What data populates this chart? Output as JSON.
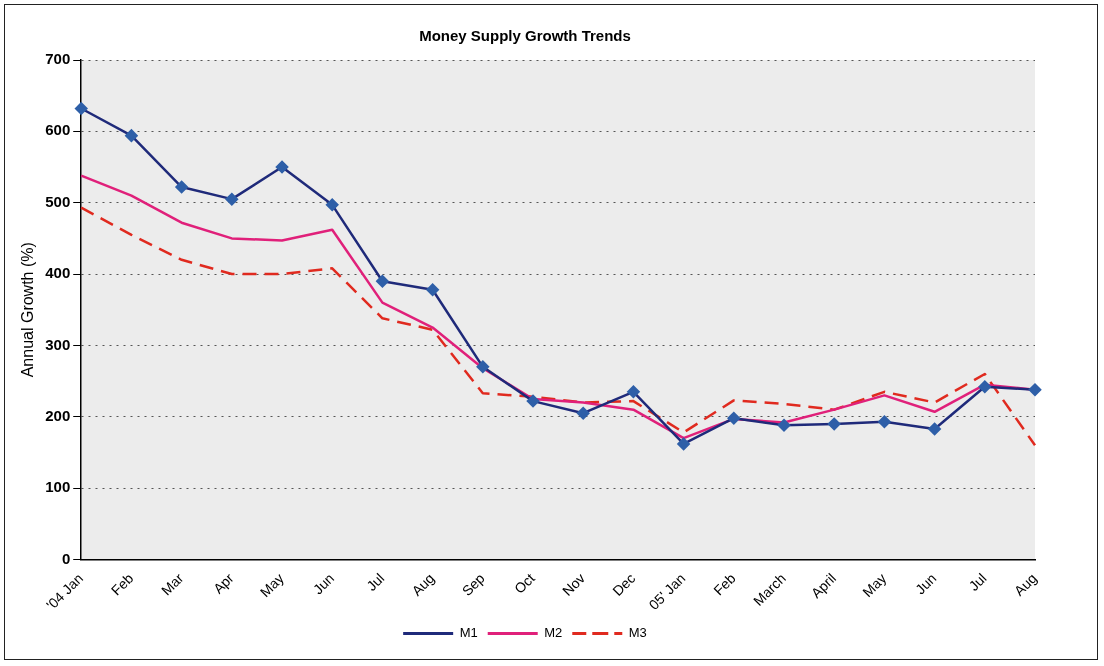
{
  "chart_data": {
    "type": "line",
    "title": "Money Supply Growth Trends",
    "ylabel": "Annual Growth (%)",
    "categories": [
      "'04 Jan",
      "Feb",
      "Mar",
      "Apr",
      "May",
      "Jun",
      "Jul",
      "Aug",
      "Sep",
      "Oct",
      "Nov",
      "Dec",
      "05' Jan",
      "Feb",
      "March",
      "April",
      "May",
      "Jun",
      "Jul",
      "Aug"
    ],
    "series": [
      {
        "name": "M1",
        "color": "#1f2a7a",
        "marker": "diamond",
        "line_style": "solid",
        "values": [
          632,
          594,
          522,
          505,
          550,
          497,
          390,
          378,
          270,
          222,
          205,
          235,
          162,
          198,
          188,
          190,
          193,
          183,
          242,
          238
        ]
      },
      {
        "name": "M2",
        "color": "#e0207a",
        "marker": "none",
        "line_style": "solid",
        "values": [
          538,
          510,
          472,
          450,
          447,
          462,
          360,
          325,
          268,
          225,
          220,
          210,
          170,
          197,
          192,
          210,
          230,
          207,
          245,
          238
        ]
      },
      {
        "name": "M3",
        "color": "#e02a1f",
        "marker": "none",
        "line_style": "dashed",
        "values": [
          493,
          455,
          420,
          400,
          400,
          408,
          338,
          322,
          233,
          228,
          220,
          222,
          178,
          223,
          218,
          210,
          235,
          220,
          260,
          160
        ]
      }
    ],
    "ylim": [
      0,
      700
    ],
    "yticks": [
      0,
      100,
      200,
      300,
      400,
      500,
      600,
      700
    ],
    "grid": "y",
    "legend": "bottom"
  }
}
